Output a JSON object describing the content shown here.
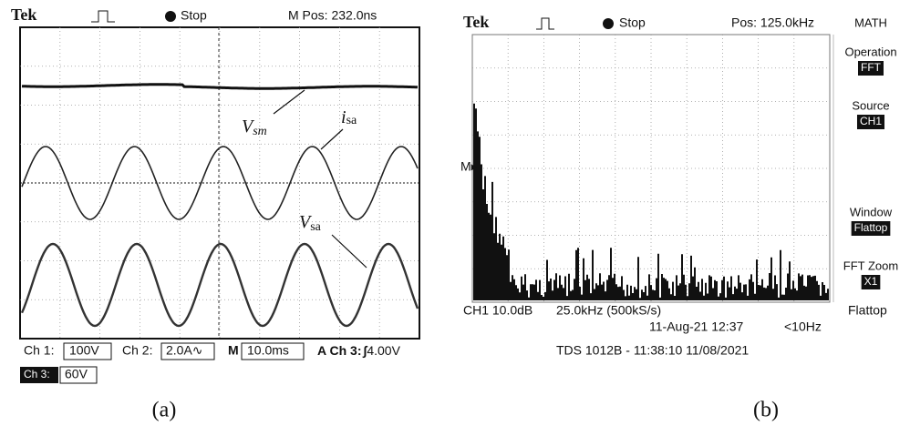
{
  "panel_a": {
    "header": {
      "brand": "Tek",
      "status": "Stop",
      "position": "M Pos: 232.0ns"
    },
    "annotations": [
      {
        "main": "V",
        "sub": "sm"
      },
      {
        "main": "i",
        "sub": "sa"
      },
      {
        "main": "V",
        "sub": "sa"
      }
    ],
    "readout": {
      "ch1_label": "Ch 1:",
      "ch1_value": "100V",
      "ch2_label": "Ch 2:",
      "ch2_value": "2.0A∿",
      "m_label": "M",
      "m_value": "10.0ms",
      "trigger_label": "A Ch 3:",
      "trigger_icon": "∫",
      "trigger_value": "4.00V",
      "ch3_label": "Ch 3:",
      "ch3_value": "60V"
    },
    "caption": "(a)"
  },
  "panel_b": {
    "header": {
      "brand": "Tek",
      "status": "Stop",
      "position": "Pos: 125.0kHz"
    },
    "marker": "M▸",
    "menu": {
      "title": "MATH",
      "items": [
        {
          "label": "Operation",
          "value": "FFT"
        },
        {
          "label": "Source",
          "value": "CH1"
        },
        {
          "label": "Window",
          "value": "Flattop"
        },
        {
          "label": "FFT Zoom",
          "value": "X1"
        }
      ]
    },
    "readout": {
      "scale": "CH1 10.0dB",
      "span": "25.0kHz (500kS/s)",
      "window": "Flattop",
      "date": "11-Aug-21 12:37",
      "resolution": "<10Hz"
    },
    "footer": "TDS 1012B - 11:38:10  11/08/2021",
    "caption": "(b)"
  }
}
